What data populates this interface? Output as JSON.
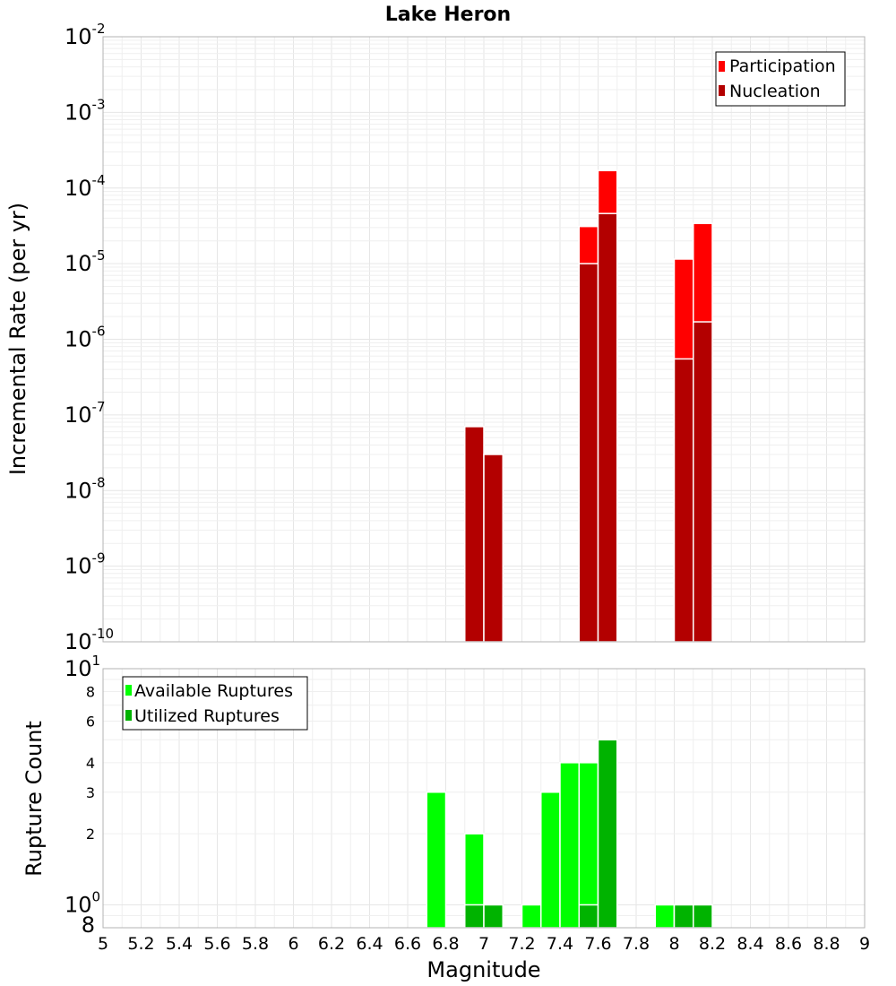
{
  "chart_data": [
    {
      "type": "bar",
      "title": "Lake Heron",
      "xlabel": "",
      "ylabel": "Incremental Rate (per yr)",
      "xlim": [
        5,
        9
      ],
      "ylim": [
        1e-10,
        0.01
      ],
      "yscale": "log",
      "bin_width": 0.1,
      "grid": true,
      "legend_placement": "top-right",
      "series": [
        {
          "name": "Participation",
          "color": "#ff0000",
          "x": [
            7.55,
            7.65,
            8.05,
            8.15
          ],
          "values": [
            3.1e-05,
            0.00017,
            1.15e-05,
            3.4e-05
          ]
        },
        {
          "name": "Nucleation",
          "color": "#b30000",
          "x": [
            6.95,
            7.05,
            7.55,
            7.65,
            8.05,
            8.15
          ],
          "values": [
            7e-08,
            3e-08,
            1e-05,
            4.6e-05,
            5.5e-07,
            1.7e-06
          ]
        }
      ],
      "y_ticks": [
        {
          "base": "10",
          "exp": "-2"
        },
        {
          "base": "10",
          "exp": "-3"
        },
        {
          "base": "10",
          "exp": "-4"
        },
        {
          "base": "10",
          "exp": "-5"
        },
        {
          "base": "10",
          "exp": "-6"
        },
        {
          "base": "10",
          "exp": "-7"
        },
        {
          "base": "10",
          "exp": "-8"
        },
        {
          "base": "10",
          "exp": "-9"
        },
        {
          "base": "10",
          "exp": "-10"
        }
      ]
    },
    {
      "type": "bar",
      "title": "",
      "xlabel": "Magnitude",
      "ylabel": "Rupture Count",
      "xlim": [
        5,
        9
      ],
      "ylim": [
        0.8,
        10
      ],
      "yscale": "log",
      "bin_width": 0.1,
      "grid": true,
      "legend_placement": "top-left",
      "series": [
        {
          "name": "Available Ruptures",
          "color": "#00ff00",
          "x": [
            6.75,
            6.95,
            7.05,
            7.25,
            7.35,
            7.45,
            7.55,
            7.65,
            7.95,
            8.05,
            8.15
          ],
          "values": [
            3,
            2,
            1,
            1,
            3,
            4,
            4,
            5,
            1,
            1,
            1
          ]
        },
        {
          "name": "Utilized Ruptures",
          "color": "#00b300",
          "x": [
            6.95,
            7.05,
            7.55,
            7.65,
            8.05,
            8.15
          ],
          "values": [
            1,
            1,
            1,
            5,
            1,
            1
          ]
        }
      ],
      "x_ticks": [
        "5",
        "5.2",
        "5.4",
        "5.6",
        "5.8",
        "6",
        "6.2",
        "6.4",
        "6.6",
        "6.8",
        "7",
        "7.2",
        "7.4",
        "7.6",
        "7.8",
        "8",
        "8.2",
        "8.4",
        "8.6",
        "8.8",
        "9"
      ],
      "y_ticks_major": [
        {
          "value": 10,
          "base": "10",
          "exp": "1"
        },
        {
          "value": 1,
          "base": "10",
          "exp": "0"
        }
      ],
      "y_ticks_minor": [
        {
          "value": 8,
          "label": "8"
        },
        {
          "value": 6,
          "label": "6"
        },
        {
          "value": 4,
          "label": "4"
        },
        {
          "value": 3,
          "label": "3"
        },
        {
          "value": 2,
          "label": "2"
        }
      ],
      "y_bottom_label": {
        "value": 0.8,
        "label": "8"
      }
    }
  ]
}
